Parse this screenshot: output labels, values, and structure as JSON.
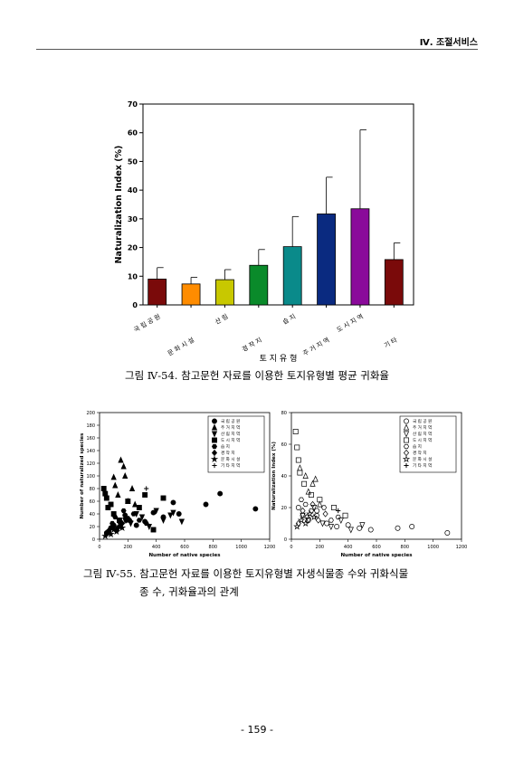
{
  "header": {
    "section": "Ⅳ. 조절서비스"
  },
  "page_number": "- 159 -",
  "figure1": {
    "caption": "그림 Ⅳ-54. 참고문헌 자료를 이용한 토지유형별 평균 귀화율"
  },
  "figure2": {
    "caption_line1": "그림 Ⅳ-55. 참고문헌 자료를 이용한 토지유형별 자생식물종 수와 귀화식물",
    "caption_line2": "종 수, 귀화율과의 관계"
  },
  "chart_data": [
    {
      "type": "bar",
      "xlabel": "토 지 유 형",
      "ylabel": "Naturalization Index (%)",
      "ylim": [
        0,
        70
      ],
      "yticks": [
        0,
        10,
        20,
        30,
        40,
        50,
        60,
        70
      ],
      "categories": [
        "국 립 공 원",
        "문 화 시 설",
        "산 림",
        "경 작 지",
        "습 지",
        "주 거 지 역",
        "도 시 지 역",
        "기 타"
      ],
      "values": [
        9,
        7.3,
        8.8,
        13.8,
        20.3,
        31.7,
        33.5,
        15.8
      ],
      "errors": [
        4,
        2.3,
        3.5,
        5.5,
        10.5,
        12.8,
        27.5,
        5.8
      ],
      "colors": [
        "#7a0a0a",
        "#ff8c00",
        "#c8c800",
        "#0a8a2a",
        "#0a8a8a",
        "#0a2a80",
        "#8a0a9a",
        "#7a0a0a"
      ]
    },
    {
      "type": "scatter",
      "xlabel": "Number of native species",
      "ylabel": "Number of naturalized species",
      "xlim": [
        0,
        1200
      ],
      "ylim": [
        0,
        200
      ],
      "xticks": [
        0,
        200,
        400,
        600,
        800,
        1000,
        1200
      ],
      "yticks": [
        0,
        20,
        40,
        60,
        80,
        100,
        120,
        140,
        160,
        180,
        200
      ],
      "legend": [
        "국 립 공 원",
        "주 거 지 역",
        "산 림 지 역",
        "도 시 지 역",
        "습 지",
        "경 작 지",
        "문 화 시 설",
        "기 타 지 역"
      ],
      "legend_position": "top-right",
      "series": [
        {
          "name": "국 립 공 원",
          "marker": "circle",
          "x": [
            50,
            80,
            100,
            120,
            150,
            180,
            210,
            260,
            320,
            380,
            450,
            520,
            560,
            750,
            850,
            1100
          ],
          "y": [
            10,
            18,
            22,
            14,
            26,
            38,
            30,
            22,
            28,
            42,
            35,
            58,
            40,
            55,
            72,
            48
          ]
        },
        {
          "name": "주 거 지 역",
          "marker": "triangle-up",
          "x": [
            100,
            110,
            130,
            150,
            170,
            180,
            200,
            230,
            250
          ],
          "y": [
            98,
            85,
            70,
            125,
            115,
            100,
            60,
            80,
            55
          ]
        },
        {
          "name": "산 림 지 역",
          "marker": "triangle-down",
          "x": [
            150,
            180,
            220,
            260,
            300,
            350,
            400,
            450,
            500,
            520,
            580
          ],
          "y": [
            20,
            30,
            25,
            40,
            35,
            20,
            45,
            30,
            38,
            42,
            28
          ]
        },
        {
          "name": "도 시 지 역",
          "marker": "square",
          "x": [
            30,
            40,
            50,
            60,
            80,
            100,
            140,
            200,
            280,
            320,
            380,
            450
          ],
          "y": [
            80,
            72,
            65,
            50,
            55,
            40,
            30,
            60,
            50,
            70,
            15,
            65
          ]
        },
        {
          "name": "습 지",
          "marker": "hexagon",
          "x": [
            60,
            90,
            110,
            140,
            170,
            200,
            240,
            280,
            330
          ],
          "y": [
            12,
            25,
            35,
            28,
            45,
            33,
            40,
            30,
            25
          ]
        },
        {
          "name": "경 작 지",
          "marker": "diamond",
          "x": [
            50,
            70,
            100,
            130,
            160,
            190,
            220
          ],
          "y": [
            8,
            15,
            20,
            18,
            25,
            30,
            28
          ]
        },
        {
          "name": "문 화 시 설",
          "marker": "star",
          "x": [
            40,
            60,
            80,
            100,
            120,
            140,
            160
          ],
          "y": [
            5,
            10,
            8,
            15,
            12,
            20,
            18
          ]
        },
        {
          "name": "기 타 지 역",
          "marker": "plus",
          "x": [
            330
          ],
          "y": [
            80
          ]
        }
      ]
    },
    {
      "type": "scatter",
      "xlabel": "Number of native species",
      "ylabel": "Naturalization Index (%)",
      "xlim": [
        0,
        1200
      ],
      "ylim": [
        0,
        80
      ],
      "xticks": [
        0,
        200,
        400,
        600,
        800,
        1000,
        1200
      ],
      "yticks": [
        0,
        20,
        40,
        60,
        80
      ],
      "legend": [
        "국 립 공 원",
        "주 거 지 역",
        "산 림 지 역",
        "도 시 지 역",
        "습 지",
        "경 작 지",
        "문 화 시 설",
        "기 타 지 역"
      ],
      "legend_position": "top-right",
      "series": [
        {
          "name": "국 립 공 원",
          "marker": "circle",
          "x": [
            50,
            80,
            120,
            180,
            250,
            320,
            400,
            480,
            560,
            750,
            850,
            1100
          ],
          "y": [
            20,
            15,
            12,
            18,
            10,
            8,
            9,
            7,
            6,
            7,
            8,
            4
          ]
        },
        {
          "name": "주 거 지 역",
          "marker": "triangle-up",
          "x": [
            60,
            100,
            120,
            150,
            170,
            200
          ],
          "y": [
            45,
            40,
            30,
            35,
            38,
            22
          ]
        },
        {
          "name": "산 림 지 역",
          "marker": "triangle-down",
          "x": [
            80,
            120,
            160,
            220,
            280,
            350,
            420,
            500
          ],
          "y": [
            15,
            12,
            20,
            10,
            8,
            12,
            6,
            9
          ]
        },
        {
          "name": "도 시 지 역",
          "marker": "square",
          "x": [
            30,
            40,
            50,
            60,
            90,
            140,
            200,
            300,
            380
          ],
          "y": [
            68,
            58,
            50,
            42,
            35,
            28,
            25,
            20,
            15
          ]
        },
        {
          "name": "습 지",
          "marker": "hexagon",
          "x": [
            70,
            100,
            140,
            180,
            230,
            280,
            330
          ],
          "y": [
            25,
            22,
            18,
            15,
            20,
            12,
            14
          ]
        },
        {
          "name": "경 작 지",
          "marker": "diamond",
          "x": [
            50,
            80,
            110,
            150,
            190,
            240
          ],
          "y": [
            10,
            18,
            14,
            22,
            12,
            16
          ]
        },
        {
          "name": "문 화 시 설",
          "marker": "star",
          "x": [
            40,
            70,
            100,
            130,
            160
          ],
          "y": [
            8,
            12,
            10,
            16,
            14
          ]
        },
        {
          "name": "기 타 지 역",
          "marker": "plus",
          "x": [
            330
          ],
          "y": [
            18
          ]
        }
      ]
    }
  ]
}
